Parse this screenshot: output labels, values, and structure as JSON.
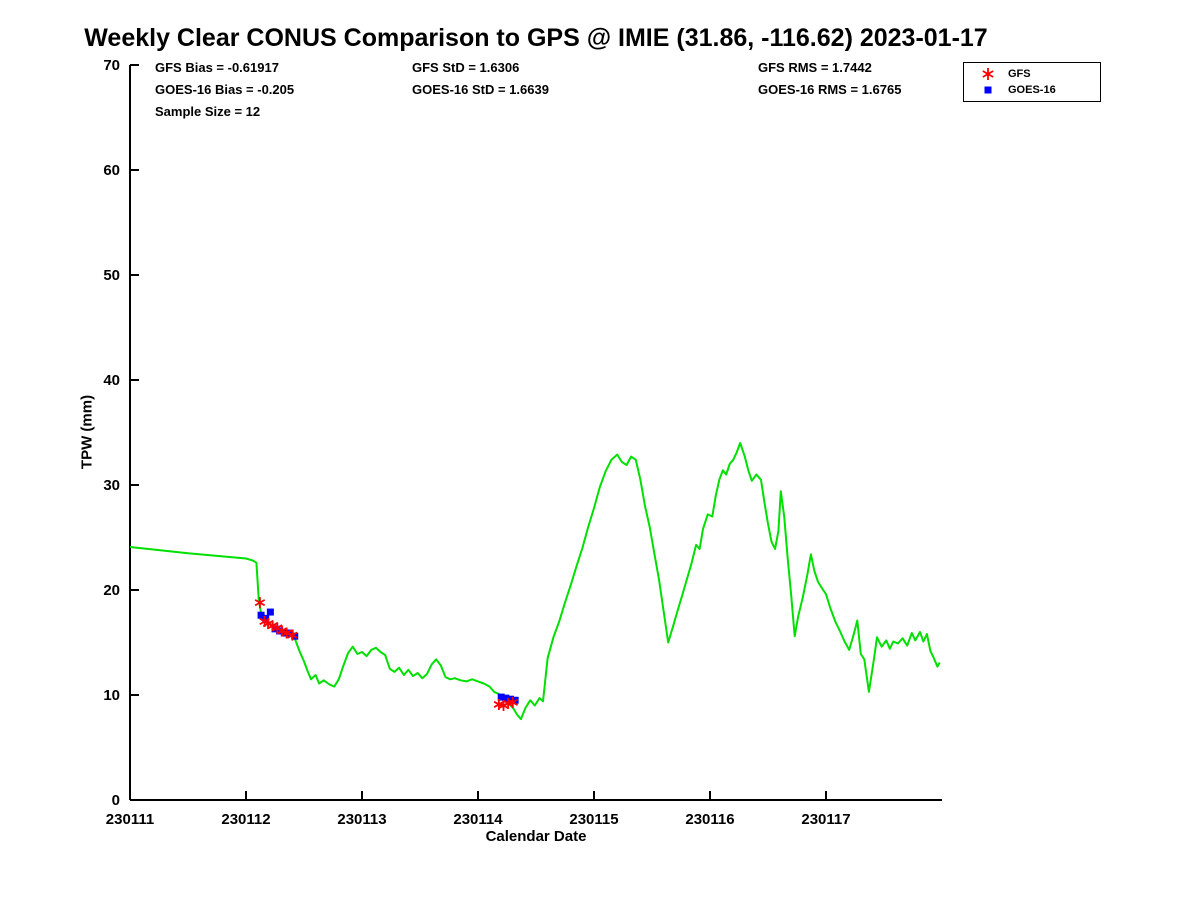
{
  "title": "Weekly Clear CONUS Comparison to GPS @ IMIE (31.86, -116.62) 2023-01-17",
  "stats": {
    "col1": [
      "GFS Bias = -0.61917",
      "GOES-16 Bias = -0.205",
      "Sample Size = 12"
    ],
    "col2": [
      "GFS StD = 1.6306",
      "GOES-16 StD = 1.6639"
    ],
    "col3": [
      "GFS RMS = 1.7442",
      "GOES-16 RMS = 1.6765"
    ]
  },
  "legend": {
    "items": [
      {
        "label": "GFS",
        "marker": "asterisk",
        "color": "#ff0000"
      },
      {
        "label": "GOES-16",
        "marker": "square",
        "color": "#0000ff"
      }
    ]
  },
  "chart_data": {
    "type": "line",
    "title": "Weekly Clear CONUS Comparison to GPS @ IMIE (31.86, -116.62) 2023-01-17",
    "xlabel": "Calendar Date",
    "ylabel": "TPW (mm)",
    "xlim": [
      230111,
      230118
    ],
    "ylim": [
      0,
      70
    ],
    "xticks": [
      230111,
      230112,
      230113,
      230114,
      230115,
      230116,
      230117
    ],
    "yticks": [
      0,
      10,
      20,
      30,
      40,
      50,
      60,
      70
    ],
    "grid": false,
    "legend_position": "top-right",
    "series": [
      {
        "name": "GPS",
        "type": "line",
        "color": "#00e000",
        "x": [
          230111.0,
          230111.5,
          230112.0,
          230112.06,
          230112.09,
          230112.11,
          230112.13,
          230112.15,
          230112.18,
          230112.21,
          230112.24,
          230112.27,
          230112.3,
          230112.33,
          230112.36,
          230112.39,
          230112.42,
          230112.46,
          230112.5,
          230112.53,
          230112.56,
          230112.6,
          230112.63,
          230112.67,
          230112.72,
          230112.76,
          230112.8,
          230112.84,
          230112.88,
          230112.92,
          230112.96,
          230113.0,
          230113.04,
          230113.08,
          230113.12,
          230113.16,
          230113.2,
          230113.24,
          230113.28,
          230113.32,
          230113.36,
          230113.4,
          230113.44,
          230113.48,
          230113.52,
          230113.56,
          230113.6,
          230113.64,
          230113.68,
          230113.72,
          230113.76,
          230113.8,
          230113.85,
          230113.9,
          230113.95,
          230114.0,
          230114.05,
          230114.1,
          230114.14,
          230114.18,
          230114.22,
          230114.26,
          230114.3,
          230114.34,
          230114.37,
          230114.41,
          230114.45,
          230114.49,
          230114.53,
          230114.56,
          230114.6,
          230114.65,
          230114.7,
          230114.75,
          230114.8,
          230114.85,
          230114.9,
          230114.95,
          230115.0,
          230115.05,
          230115.1,
          230115.15,
          230115.2,
          230115.24,
          230115.28,
          230115.32,
          230115.36,
          230115.4,
          230115.44,
          230115.48,
          230115.52,
          230115.56,
          230115.6,
          230115.64,
          230115.68,
          230115.72,
          230115.76,
          230115.8,
          230115.84,
          230115.88,
          230115.91,
          230115.94,
          230115.98,
          230116.02,
          230116.05,
          230116.08,
          230116.11,
          230116.14,
          230116.17,
          230116.2,
          230116.23,
          230116.26,
          230116.3,
          230116.33,
          230116.36,
          230116.4,
          230116.44,
          230116.47,
          230116.5,
          230116.53,
          230116.56,
          230116.59,
          230116.61,
          230116.64,
          230116.67,
          230116.7,
          230116.73,
          230116.76,
          230116.8,
          230116.84,
          230116.87,
          230116.9,
          230116.93,
          230116.97,
          230117.0,
          230117.04,
          230117.08,
          230117.12,
          230117.16,
          230117.2,
          230117.24,
          230117.27,
          230117.3,
          230117.33,
          230117.37,
          230117.41,
          230117.44,
          230117.48,
          230117.52,
          230117.55,
          230117.58,
          230117.62,
          230117.66,
          230117.7,
          230117.74,
          230117.77,
          230117.81,
          230117.84,
          230117.87,
          230117.9,
          230117.93,
          230117.96,
          230117.98
        ],
        "y": [
          24.1,
          23.5,
          23.0,
          22.8,
          22.6,
          19.0,
          17.8,
          17.4,
          17.1,
          16.8,
          16.5,
          16.3,
          16.0,
          15.9,
          15.8,
          15.6,
          15.4,
          14.2,
          13.2,
          12.3,
          11.5,
          11.9,
          11.1,
          11.4,
          11.0,
          10.8,
          11.5,
          12.8,
          14.0,
          14.6,
          13.9,
          14.1,
          13.7,
          14.3,
          14.5,
          14.1,
          13.8,
          12.5,
          12.2,
          12.6,
          11.9,
          12.4,
          11.8,
          12.1,
          11.6,
          12.0,
          12.9,
          13.4,
          12.8,
          11.7,
          11.5,
          11.6,
          11.4,
          11.3,
          11.5,
          11.3,
          11.1,
          10.8,
          10.3,
          10.1,
          9.7,
          9.2,
          8.8,
          8.1,
          7.7,
          8.8,
          9.5,
          9.0,
          9.7,
          9.4,
          13.5,
          15.5,
          17.0,
          18.8,
          20.5,
          22.3,
          24.0,
          26.0,
          27.8,
          29.8,
          31.3,
          32.4,
          32.9,
          32.2,
          31.9,
          32.7,
          32.4,
          30.5,
          28.0,
          26.0,
          23.5,
          21.0,
          18.0,
          15.0,
          16.5,
          18.0,
          19.5,
          21.0,
          22.5,
          24.3,
          23.9,
          25.8,
          27.2,
          27.0,
          29.0,
          30.5,
          31.4,
          31.0,
          32.0,
          32.4,
          33.1,
          34.0,
          32.7,
          31.4,
          30.4,
          31.0,
          30.5,
          28.3,
          26.3,
          24.6,
          23.9,
          25.6,
          29.4,
          27.0,
          23.0,
          19.5,
          15.6,
          17.5,
          19.3,
          21.5,
          23.4,
          21.8,
          20.8,
          20.1,
          19.6,
          18.2,
          17.0,
          16.1,
          15.1,
          14.3,
          15.8,
          17.1,
          13.9,
          13.4,
          10.3,
          13.2,
          15.5,
          14.6,
          15.2,
          14.4,
          15.1,
          14.9,
          15.4,
          14.7,
          15.9,
          15.2,
          16.0,
          15.1,
          15.8,
          14.2,
          13.5,
          12.7,
          13.1
        ]
      },
      {
        "name": "GFS",
        "type": "scatter",
        "marker": "asterisk",
        "color": "#ff0000",
        "x": [
          230112.12,
          230112.16,
          230112.19,
          230112.23,
          230112.27,
          230112.31,
          230112.35,
          230112.4,
          230114.18,
          230114.22,
          230114.26,
          230114.3
        ],
        "y": [
          18.8,
          17.0,
          16.8,
          16.6,
          16.4,
          16.1,
          15.9,
          15.7,
          9.1,
          9.0,
          9.2,
          9.3
        ]
      },
      {
        "name": "GOES-16",
        "type": "scatter",
        "marker": "square",
        "color": "#0000ff",
        "x": [
          230112.13,
          230112.17,
          230112.21,
          230112.25,
          230112.29,
          230112.33,
          230112.38,
          230112.42,
          230114.2,
          230114.24,
          230114.28,
          230114.32
        ],
        "y": [
          17.6,
          17.3,
          17.9,
          16.3,
          16.1,
          15.9,
          15.9,
          15.6,
          9.8,
          9.7,
          9.6,
          9.5
        ]
      }
    ]
  }
}
